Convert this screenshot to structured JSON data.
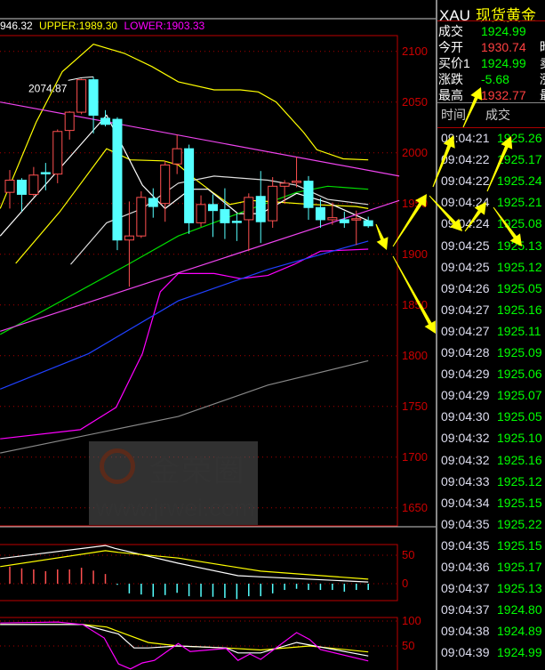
{
  "indicator_header": {
    "mid": "946.32",
    "upper": "UPPER:1989.30",
    "lower": "LOWER:1903.33",
    "colors": {
      "mid": "#ffffff",
      "upper": "#ffff00",
      "lower": "#ff00ff"
    }
  },
  "quote_panel": {
    "code": "XAU",
    "name": "现货黄金",
    "rows": [
      {
        "label": "成交",
        "value": "1924.99",
        "color": "#00ff00",
        "cut": ""
      },
      {
        "label": "今开",
        "value": "1930.74",
        "color": "#ff4040",
        "cut": "昨"
      },
      {
        "label": "买价1",
        "value": "1924.99",
        "color": "#00ff00",
        "cut": "卖"
      },
      {
        "label": "涨跌",
        "value": "-5.68",
        "color": "#00ff00",
        "cut": "涨"
      },
      {
        "label": "最高",
        "value": "1932.77",
        "color": "#ff4040",
        "cut": "最"
      }
    ],
    "tick_header": {
      "time": "时间",
      "price": "成交"
    },
    "ticks": [
      {
        "time": "09:04:21",
        "price": "1925.26"
      },
      {
        "time": "09:04:22",
        "price": "1925.17"
      },
      {
        "time": "09:04:22",
        "price": "1925.24"
      },
      {
        "time": "09:04:24",
        "price": "1925.21"
      },
      {
        "time": "09:04:24",
        "price": "1925.08"
      },
      {
        "time": "09:04:25",
        "price": "1925.13"
      },
      {
        "time": "09:04:25",
        "price": "1925.12"
      },
      {
        "time": "09:04:26",
        "price": "1925.05"
      },
      {
        "time": "09:04:27",
        "price": "1925.16"
      },
      {
        "time": "09:04:27",
        "price": "1925.11"
      },
      {
        "time": "09:04:28",
        "price": "1925.09"
      },
      {
        "time": "09:04:29",
        "price": "1925.06"
      },
      {
        "time": "09:04:29",
        "price": "1925.07"
      },
      {
        "time": "09:04:30",
        "price": "1925.05"
      },
      {
        "time": "09:04:32",
        "price": "1925.10"
      },
      {
        "time": "09:04:32",
        "price": "1925.16"
      },
      {
        "time": "09:04:33",
        "price": "1925.12"
      },
      {
        "time": "09:04:34",
        "price": "1925.15"
      },
      {
        "time": "09:04:35",
        "price": "1925.22"
      },
      {
        "time": "09:04:35",
        "price": "1925.15"
      },
      {
        "time": "09:04:36",
        "price": "1925.17"
      },
      {
        "time": "09:04:37",
        "price": "1925.13"
      },
      {
        "time": "09:04:37",
        "price": "1924.80"
      },
      {
        "time": "09:04:38",
        "price": "1924.89"
      },
      {
        "time": "09:04:39",
        "price": "1924.99"
      }
    ]
  },
  "watermark": {
    "brand": "金荣圈",
    "logo_text": "JR",
    "url": "www.jrwei.com"
  },
  "chart_data": [
    {
      "type": "candlestick",
      "price_ticks": [
        "2100",
        "2050",
        "2000",
        "1950",
        "1900",
        "1850",
        "1800",
        "1750",
        "1700",
        "1650"
      ],
      "ylim": [
        1633,
        2116
      ],
      "grid": true,
      "up_color": "#ff5050",
      "down_color": "#55ffff",
      "high_label": "2074.87",
      "high_label_index": 8,
      "candles_ohlc": [
        [
          1961,
          1983,
          1945,
          1973
        ],
        [
          1973,
          1975,
          1942,
          1959
        ],
        [
          1959,
          1986,
          1957,
          1978
        ],
        [
          1980.5,
          1990,
          1963,
          1980
        ],
        [
          1979,
          2023,
          1970,
          2021
        ],
        [
          2022,
          2041,
          2013,
          2040
        ],
        [
          2040,
          2073,
          2038,
          2072
        ],
        [
          2072,
          2074.87,
          2019,
          2037
        ],
        [
          2034,
          2042,
          2026,
          2028
        ],
        [
          2033,
          2035,
          1904,
          1914
        ],
        [
          1914,
          1952,
          1868,
          1918
        ],
        [
          1918,
          1962,
          1916,
          1956
        ],
        [
          1955,
          1965,
          1936,
          1947
        ],
        [
          1950,
          1992,
          1932,
          1988
        ],
        [
          1989,
          2018,
          1979,
          2004
        ],
        [
          2004,
          2008,
          1920,
          1931
        ],
        [
          1931,
          1958,
          1927,
          1949
        ],
        [
          1949,
          1959,
          1917,
          1943
        ],
        [
          1944,
          1965,
          1915,
          1931
        ],
        [
          1932.5,
          1940,
          1913,
          1932
        ],
        [
          1934,
          1960,
          1903,
          1956
        ],
        [
          1957,
          1982,
          1911,
          1932
        ],
        [
          1933,
          1976,
          1926,
          1967
        ],
        [
          1967,
          1973,
          1950,
          1970
        ],
        [
          1971,
          1996,
          1966,
          1972
        ],
        [
          1972,
          1977,
          1934,
          1946
        ],
        [
          1946,
          1955,
          1926,
          1934
        ],
        [
          1934,
          1951,
          1929,
          1936
        ],
        [
          1934,
          1942,
          1926,
          1931
        ],
        [
          1934,
          1943,
          1909,
          1935
        ],
        [
          1933,
          1937,
          1926,
          1928
        ]
      ],
      "overlays": [
        {
          "name": "UPPER",
          "color": "#ffff00",
          "points": [
            [
              0.2,
              1945
            ],
            [
              3.2,
              2030
            ],
            [
              5.4,
              2080
            ],
            [
              8,
              2107
            ],
            [
              10.6,
              2098
            ],
            [
              12.9,
              2085
            ],
            [
              15.1,
              2070
            ],
            [
              18.1,
              2062
            ],
            [
              20.3,
              2062
            ],
            [
              21.8,
              2060
            ],
            [
              23.3,
              2050
            ],
            [
              25.6,
              2020
            ],
            [
              26.7,
              2003
            ],
            [
              28.9,
              1994
            ],
            [
              31,
              1993
            ]
          ]
        },
        {
          "name": "MID",
          "color": "#ffff00",
          "points": [
            [
              1.5,
              1891
            ],
            [
              5.2,
              1942
            ],
            [
              9.1,
              2004
            ],
            [
              11.1,
              1993
            ],
            [
              13.9,
              1992
            ],
            [
              15.1,
              1988
            ],
            [
              16.4,
              1975
            ],
            [
              18.1,
              1960
            ],
            [
              19.4,
              1949
            ],
            [
              21.1,
              1953
            ],
            [
              22.6,
              1952
            ],
            [
              26.3,
              1949
            ],
            [
              30,
              1947
            ],
            [
              31,
              1945
            ]
          ]
        },
        {
          "name": "LOWER",
          "color": "#ff00ff",
          "points": [
            [
              0.2,
              1718
            ],
            [
              6.9,
              1727
            ],
            [
              9.9,
              1749
            ],
            [
              12.1,
              1802
            ],
            [
              13.6,
              1863
            ],
            [
              15.1,
              1881
            ],
            [
              18.1,
              1881
            ],
            [
              20.3,
              1876
            ],
            [
              22.6,
              1879
            ],
            [
              24.8,
              1890
            ],
            [
              27,
              1903
            ],
            [
              31,
              1905
            ]
          ]
        },
        {
          "color": "#ffffff",
          "points": [
            [
              0.2,
              1918
            ],
            [
              9.1,
              2037
            ],
            [
              12.1,
              1968
            ],
            [
              14,
              1945
            ],
            [
              16.1,
              1964
            ],
            [
              17.6,
              1964
            ],
            [
              20.1,
              1940
            ],
            [
              22,
              1940
            ],
            [
              25,
              1960
            ],
            [
              27.6,
              1951
            ],
            [
              31,
              1933
            ]
          ]
        },
        {
          "color": "#dddddd",
          "points": [
            [
              6.1,
              1890
            ],
            [
              9.1,
              1931
            ],
            [
              12.1,
              1945
            ],
            [
              15.1,
              1970
            ],
            [
              18.1,
              1977
            ],
            [
              22.6,
              1973
            ],
            [
              25,
              1968
            ],
            [
              27.6,
              1954
            ],
            [
              31,
              1949
            ]
          ]
        },
        {
          "color": "#00dd00",
          "points": [
            [
              0.2,
              1821
            ],
            [
              10.9,
              1890
            ],
            [
              15.1,
              1918
            ],
            [
              20.1,
              1940
            ],
            [
              25,
              1961
            ],
            [
              27.6,
              1967
            ],
            [
              31,
              1964
            ]
          ]
        },
        {
          "color": "#2040ff",
          "points": [
            [
              0.2,
              1767
            ],
            [
              7.6,
              1802
            ],
            [
              15.1,
              1854
            ],
            [
              22.6,
              1885
            ],
            [
              31,
              1913
            ]
          ]
        },
        {
          "color": "#888888",
          "points": [
            [
              0.2,
              1704
            ],
            [
              15.1,
              1740
            ],
            [
              22.6,
              1771
            ],
            [
              31,
              1795
            ]
          ]
        },
        {
          "color": "#ee44ee",
          "points": [
            [
              0.2,
              2050
            ],
            [
              33.6,
              1977
            ]
          ]
        },
        {
          "color": "#ee44ee",
          "points": [
            [
              0.2,
              1824
            ],
            [
              33.6,
              1953
            ]
          ]
        }
      ]
    },
    {
      "type": "bar+line",
      "ticks": [
        "50",
        "0"
      ],
      "histogram": [
        30,
        27,
        25,
        22,
        25,
        25,
        28,
        23,
        17,
        -2,
        -17,
        -19,
        -23,
        -20,
        -16,
        -22,
        -23,
        -23,
        -25,
        -27,
        -22,
        -22,
        -17,
        -11,
        -9,
        -11,
        -11,
        -11,
        -14,
        -11,
        -11
      ],
      "lines": [
        {
          "color": "#ffffff",
          "points": [
            [
              0.2,
              44
            ],
            [
              9,
              67
            ],
            [
              9.8,
              62
            ],
            [
              15.1,
              36
            ],
            [
              20.1,
              14
            ],
            [
              22,
              12
            ],
            [
              31,
              3
            ]
          ]
        },
        {
          "color": "#ffff00",
          "points": [
            [
              0.2,
              30
            ],
            [
              9,
              58
            ],
            [
              10.1,
              55
            ],
            [
              15.1,
              45
            ],
            [
              22,
              22
            ],
            [
              31,
              8
            ]
          ]
        }
      ]
    },
    {
      "type": "line",
      "ticks": [
        "100",
        "50"
      ],
      "lines": [
        {
          "color": "#ffff00",
          "points": [
            [
              0.2,
              93
            ],
            [
              7.1,
              93
            ],
            [
              9.1,
              88
            ],
            [
              12.6,
              57
            ],
            [
              15.1,
              50
            ],
            [
              19.1,
              46
            ],
            [
              22,
              42
            ],
            [
              26.1,
              50
            ],
            [
              31,
              38
            ]
          ]
        },
        {
          "color": "#ffffff",
          "points": [
            [
              0.2,
              93
            ],
            [
              7.1,
              93
            ],
            [
              10.1,
              74
            ],
            [
              11.4,
              46
            ],
            [
              12.6,
              46
            ],
            [
              15.1,
              50
            ],
            [
              19.1,
              46
            ],
            [
              20.1,
              36
            ],
            [
              22,
              36
            ],
            [
              25,
              57
            ],
            [
              26.1,
              52
            ],
            [
              31,
              30
            ]
          ]
        },
        {
          "color": "#ff00ff",
          "points": [
            [
              0.2,
              96
            ],
            [
              5,
              98
            ],
            [
              7.1,
              93
            ],
            [
              8.9,
              66
            ],
            [
              10.1,
              14
            ],
            [
              11.1,
              4
            ],
            [
              12.1,
              16
            ],
            [
              13.1,
              21
            ],
            [
              15.1,
              55
            ],
            [
              16.1,
              39
            ],
            [
              19.1,
              45
            ],
            [
              20.1,
              21
            ],
            [
              21.1,
              34
            ],
            [
              22,
              23
            ],
            [
              25,
              77
            ],
            [
              26.1,
              63
            ],
            [
              27,
              43
            ],
            [
              31,
              20
            ]
          ]
        }
      ]
    }
  ],
  "annotation_arrows_color": "#ffff00"
}
